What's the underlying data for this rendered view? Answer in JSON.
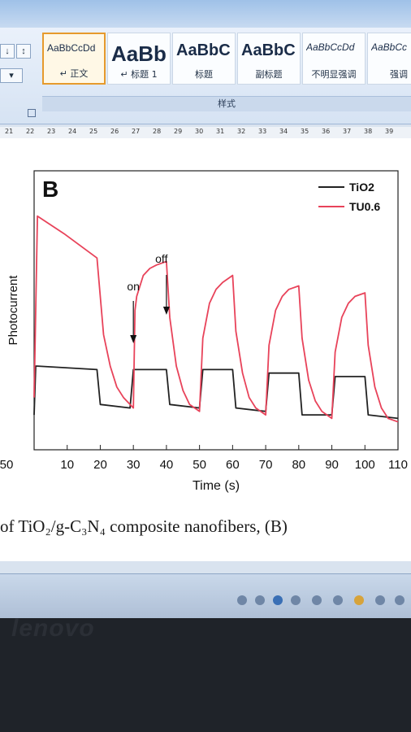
{
  "ribbon": {
    "styles": [
      {
        "preview": "AaBbCcDd",
        "name": "↵ 正文",
        "active": true
      },
      {
        "preview": "AaBb",
        "name": "↵ 标题 1",
        "active": false
      },
      {
        "preview": "AaBbC",
        "name": "标题",
        "active": false
      },
      {
        "preview": "AaBbC",
        "name": "副标题",
        "active": false
      },
      {
        "preview": "AaBbCcDd",
        "name": "不明显强调",
        "active": false
      },
      {
        "preview": "AaBbCc",
        "name": "强调",
        "active": false
      }
    ],
    "group_label": "样式"
  },
  "ruler": {
    "numbers": [
      "21",
      "22",
      "23",
      "24",
      "25",
      "26",
      "27",
      "28",
      "29",
      "30",
      "31",
      "32",
      "33",
      "34",
      "35",
      "36",
      "37",
      "38",
      "39"
    ]
  },
  "figure": {
    "panel_label": "B",
    "annotations": {
      "on": "on",
      "off": "off"
    }
  },
  "chart_data": {
    "type": "line",
    "xlabel": "Time (s)",
    "ylabel": "Photocurrent",
    "xlim": [
      0,
      110
    ],
    "xticks": [
      10,
      20,
      30,
      40,
      50,
      60,
      70,
      80,
      90,
      100,
      110
    ],
    "left_clipped_tick": "50",
    "legend_position": "top-right",
    "series": [
      {
        "name": "TiO2",
        "color": "#222222",
        "x": [
          0,
          0.5,
          1,
          19,
          20,
          29,
          30,
          40,
          41,
          50,
          51,
          60,
          61,
          70,
          71,
          80,
          81,
          90,
          91,
          100,
          101,
          110
        ],
        "y": [
          0.1,
          0.24,
          0.24,
          0.23,
          0.13,
          0.12,
          0.23,
          0.23,
          0.13,
          0.12,
          0.23,
          0.23,
          0.12,
          0.11,
          0.22,
          0.22,
          0.1,
          0.1,
          0.21,
          0.21,
          0.1,
          0.09
        ]
      },
      {
        "name": "TU0.6",
        "color": "#e8435a",
        "x": [
          0,
          1,
          9,
          19,
          21,
          23,
          25,
          27,
          29,
          30,
          30.5,
          31,
          33,
          35,
          37,
          40,
          41,
          43,
          45,
          47,
          50,
          51,
          53,
          55,
          57,
          60,
          61,
          63,
          65,
          67,
          70,
          71,
          73,
          75,
          77,
          80,
          81,
          83,
          85,
          87,
          90,
          91,
          93,
          95,
          97,
          100,
          101,
          103,
          105,
          107,
          110
        ],
        "y": [
          0.15,
          0.67,
          0.62,
          0.55,
          0.33,
          0.24,
          0.18,
          0.15,
          0.13,
          0.12,
          0.4,
          0.44,
          0.5,
          0.52,
          0.53,
          0.54,
          0.38,
          0.24,
          0.17,
          0.13,
          0.11,
          0.32,
          0.42,
          0.46,
          0.48,
          0.5,
          0.34,
          0.22,
          0.15,
          0.12,
          0.1,
          0.3,
          0.4,
          0.44,
          0.46,
          0.47,
          0.32,
          0.2,
          0.14,
          0.11,
          0.09,
          0.28,
          0.38,
          0.42,
          0.44,
          0.45,
          0.3,
          0.18,
          0.12,
          0.09,
          0.08
        ]
      }
    ]
  },
  "caption": "of TiO₂/g-C₃N₄ composite nanofibers, (B)",
  "bezel": {
    "brand": "lenovo"
  }
}
